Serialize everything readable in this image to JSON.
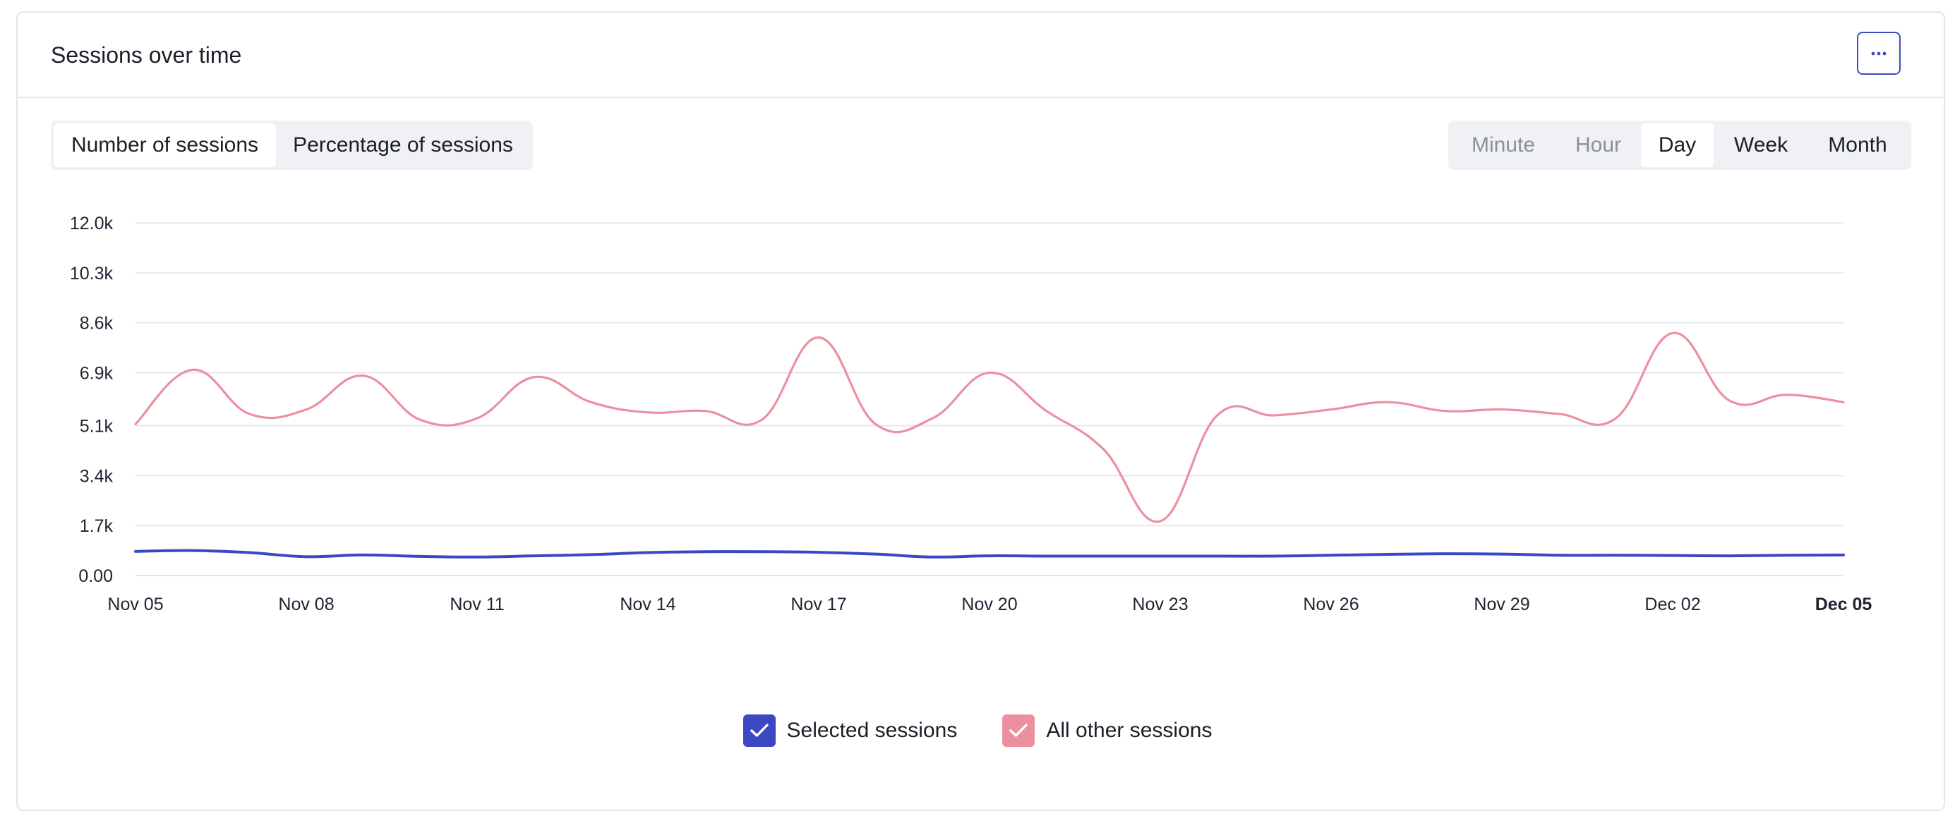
{
  "header": {
    "title": "Sessions over time",
    "menu_icon": "ellipsis-icon"
  },
  "metric_toggle": {
    "options": [
      {
        "label": "Number of sessions",
        "active": true
      },
      {
        "label": "Percentage of sessions",
        "active": false
      }
    ]
  },
  "granularity": {
    "options": [
      {
        "label": "Minute",
        "state": "disabled"
      },
      {
        "label": "Hour",
        "state": "disabled"
      },
      {
        "label": "Day",
        "state": "active"
      },
      {
        "label": "Week",
        "state": "normal"
      },
      {
        "label": "Month",
        "state": "normal"
      }
    ]
  },
  "legend": [
    {
      "label": "Selected sessions",
      "color": "#3a48c4",
      "checked": true
    },
    {
      "label": "All other sessions",
      "color": "#ec909f",
      "checked": true
    }
  ],
  "chart_data": {
    "type": "line",
    "y_tick_labels": [
      "0.00",
      "1.7k",
      "3.4k",
      "5.1k",
      "6.9k",
      "8.6k",
      "10.3k",
      "12.0k"
    ],
    "y_ticks": [
      0,
      1700,
      3400,
      5100,
      6900,
      8600,
      10300,
      12000
    ],
    "ylim": [
      0,
      12000
    ],
    "x_tick_labels": [
      "Nov 05",
      "Nov 08",
      "Nov 11",
      "Nov 14",
      "Nov 17",
      "Nov 20",
      "Nov 23",
      "Nov 26",
      "Nov 29",
      "Dec 02",
      "Dec 05"
    ],
    "x": [
      "Nov 05",
      "Nov 06",
      "Nov 07",
      "Nov 08",
      "Nov 09",
      "Nov 10",
      "Nov 11",
      "Nov 12",
      "Nov 13",
      "Nov 14",
      "Nov 15",
      "Nov 16",
      "Nov 17",
      "Nov 18",
      "Nov 19",
      "Nov 20",
      "Nov 21",
      "Nov 22",
      "Nov 23",
      "Nov 24",
      "Nov 25",
      "Nov 26",
      "Nov 27",
      "Nov 28",
      "Nov 29",
      "Nov 30",
      "Dec 01",
      "Dec 02",
      "Dec 03",
      "Dec 04",
      "Dec 05"
    ],
    "grid": true,
    "legend_position": "bottom-center",
    "series": [
      {
        "name": "Selected sessions",
        "color": "#3a48c4",
        "values": [
          820,
          850,
          780,
          640,
          700,
          650,
          630,
          670,
          710,
          780,
          810,
          810,
          790,
          730,
          630,
          670,
          660,
          660,
          660,
          660,
          660,
          690,
          720,
          740,
          730,
          690,
          690,
          680,
          670,
          690,
          700
        ]
      },
      {
        "name": "All other sessions",
        "color": "#ec909f",
        "values": [
          5150,
          7000,
          5500,
          5650,
          6800,
          5300,
          5350,
          6750,
          5900,
          5550,
          5600,
          5300,
          8100,
          5150,
          5350,
          6900,
          5600,
          4300,
          1850,
          5450,
          5450,
          5650,
          5900,
          5600,
          5650,
          5500,
          5350,
          8250,
          5950,
          6150,
          5900
        ]
      }
    ]
  }
}
